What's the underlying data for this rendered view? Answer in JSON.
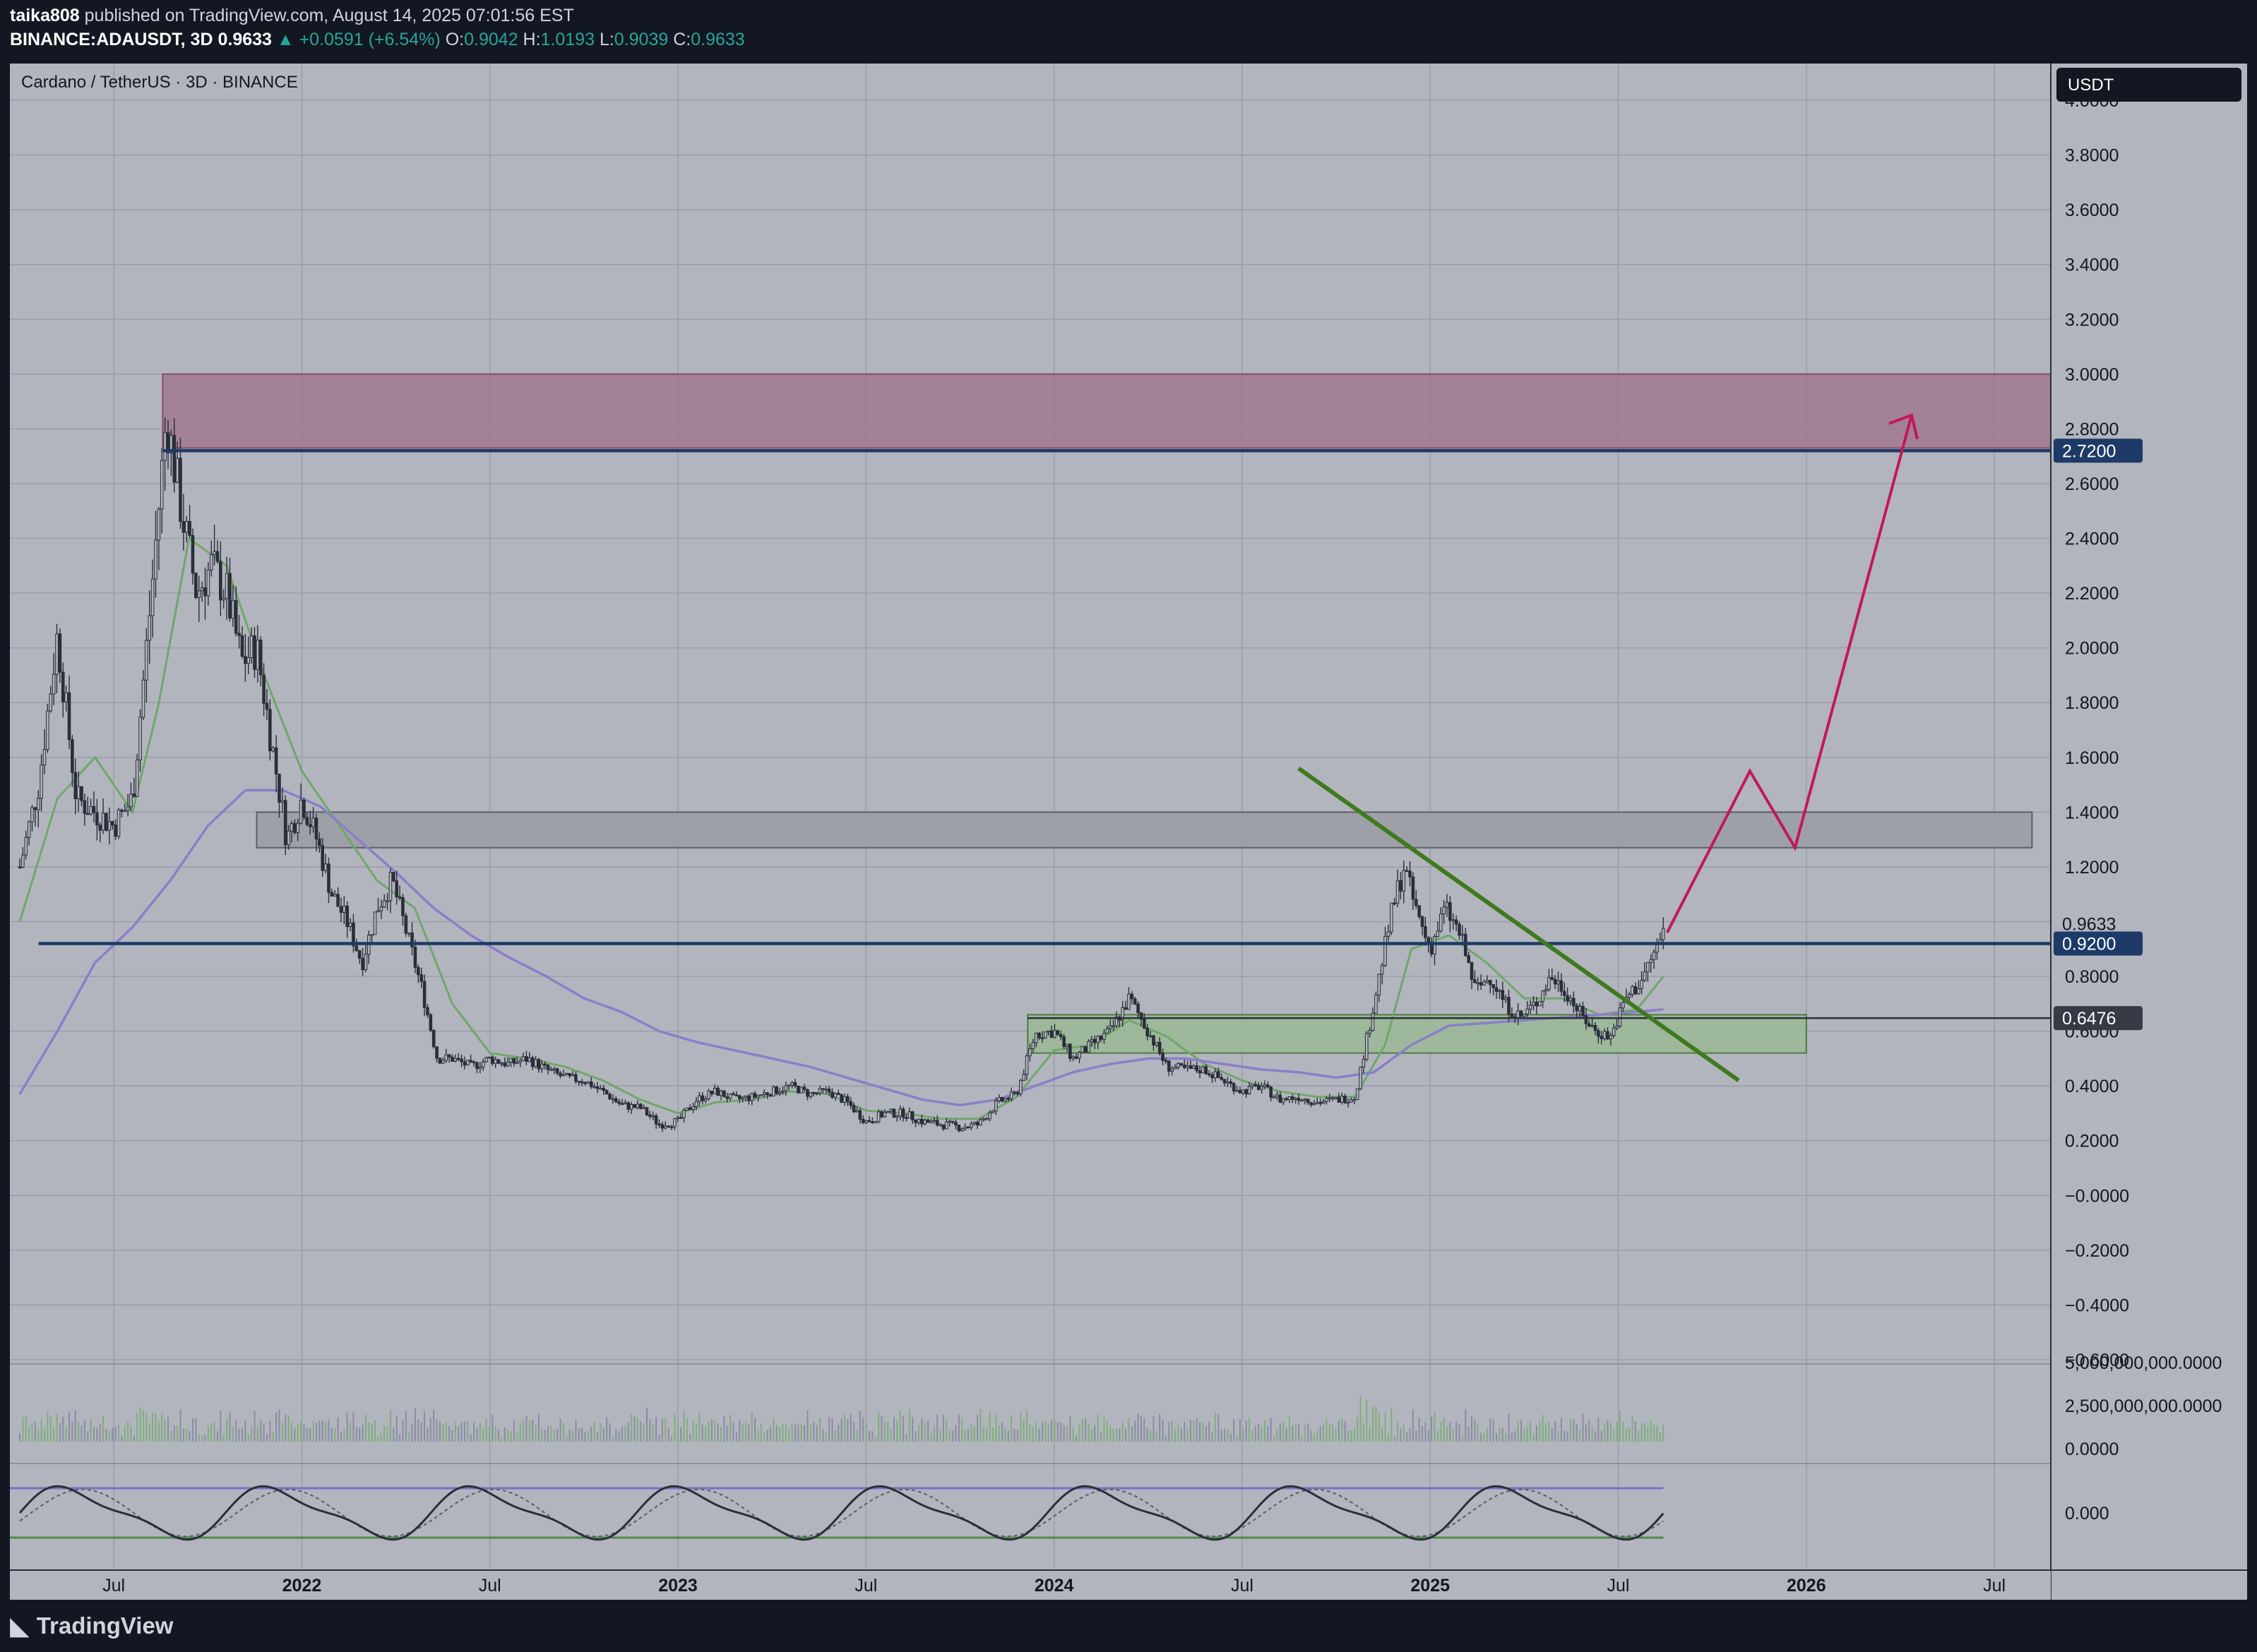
{
  "header": {
    "author": "taika808",
    "published_text": "published on TradingView.com, August 14, 2025 07:01:56 EST",
    "symbol": "BINANCE:ADAUSDT, 3D",
    "last": "0.9633",
    "change": "▲ +0.0591 (+6.54%)",
    "o_label": "O:",
    "o": "0.9042",
    "h_label": "H:",
    "h": "1.0193",
    "l_label": "L:",
    "l": "0.9039",
    "c_label": "C:",
    "c": "0.9633"
  },
  "chart_title": "Cardano / TetherUS · 3D · BINANCE",
  "currency_button": "USDT",
  "footer": {
    "logo_text": "TradingView"
  },
  "colors": {
    "background": "#b2b5be",
    "candle": "#2a2e39",
    "ema_fast": "#6fa86a",
    "ema_slow": "#8a7fc8",
    "resistance_zone": "#a0788f",
    "grey_zone": "#9a9ca4",
    "support_zone": "#9ab897",
    "trendline": "#3f7a1f",
    "projection": "#c2185b",
    "level_line": "#1e3a68"
  },
  "chart_data": {
    "type": "candlestick",
    "y_axis": {
      "min": -0.6,
      "max": 4.0,
      "ticks": [
        "4.0000",
        "3.8000",
        "3.6000",
        "3.4000",
        "3.2000",
        "3.0000",
        "2.8000",
        "2.6000",
        "2.4000",
        "2.2000",
        "2.0000",
        "1.8000",
        "1.6000",
        "1.4000",
        "1.2000",
        "1.0000",
        "0.8000",
        "0.6000",
        "0.4000",
        "0.2000",
        "−0.0000",
        "−0.2000",
        "−0.4000",
        "−0.6000"
      ]
    },
    "x_axis": {
      "start": 2021.25,
      "end": 2026.65,
      "ticks": [
        {
          "label": "Jul",
          "value": 2021.5
        },
        {
          "label": "2022",
          "value": 2022.0
        },
        {
          "label": "Jul",
          "value": 2022.5
        },
        {
          "label": "2023",
          "value": 2023.0
        },
        {
          "label": "Jul",
          "value": 2023.5
        },
        {
          "label": "2024",
          "value": 2024.0
        },
        {
          "label": "Jul",
          "value": 2024.5
        },
        {
          "label": "2025",
          "value": 2025.0
        },
        {
          "label": "Jul",
          "value": 2025.5
        },
        {
          "label": "2026",
          "value": 2026.0
        },
        {
          "label": "Jul",
          "value": 2026.5
        }
      ]
    },
    "price_path": [
      [
        2021.25,
        1.2
      ],
      [
        2021.3,
        1.5
      ],
      [
        2021.35,
        2.05
      ],
      [
        2021.4,
        1.45
      ],
      [
        2021.45,
        1.4
      ],
      [
        2021.5,
        1.35
      ],
      [
        2021.55,
        1.45
      ],
      [
        2021.6,
        2.2
      ],
      [
        2021.64,
        2.85
      ],
      [
        2021.68,
        2.5
      ],
      [
        2021.72,
        2.2
      ],
      [
        2021.76,
        2.3
      ],
      [
        2021.8,
        2.2
      ],
      [
        2021.84,
        1.95
      ],
      [
        2021.88,
        2.0
      ],
      [
        2021.92,
        1.65
      ],
      [
        2021.96,
        1.3
      ],
      [
        2022.0,
        1.45
      ],
      [
        2022.04,
        1.3
      ],
      [
        2022.08,
        1.1
      ],
      [
        2022.12,
        1.0
      ],
      [
        2022.16,
        0.85
      ],
      [
        2022.2,
        1.05
      ],
      [
        2022.24,
        1.15
      ],
      [
        2022.28,
        0.95
      ],
      [
        2022.32,
        0.75
      ],
      [
        2022.36,
        0.5
      ],
      [
        2022.4,
        0.5
      ],
      [
        2022.45,
        0.47
      ],
      [
        2022.5,
        0.5
      ],
      [
        2022.55,
        0.48
      ],
      [
        2022.6,
        0.5
      ],
      [
        2022.65,
        0.46
      ],
      [
        2022.7,
        0.43
      ],
      [
        2022.75,
        0.42
      ],
      [
        2022.8,
        0.38
      ],
      [
        2022.85,
        0.33
      ],
      [
        2022.9,
        0.32
      ],
      [
        2022.95,
        0.26
      ],
      [
        2023.0,
        0.27
      ],
      [
        2023.05,
        0.35
      ],
      [
        2023.1,
        0.38
      ],
      [
        2023.15,
        0.35
      ],
      [
        2023.2,
        0.36
      ],
      [
        2023.25,
        0.38
      ],
      [
        2023.3,
        0.4
      ],
      [
        2023.35,
        0.37
      ],
      [
        2023.4,
        0.38
      ],
      [
        2023.45,
        0.34
      ],
      [
        2023.5,
        0.27
      ],
      [
        2023.55,
        0.3
      ],
      [
        2023.6,
        0.3
      ],
      [
        2023.65,
        0.27
      ],
      [
        2023.7,
        0.26
      ],
      [
        2023.75,
        0.25
      ],
      [
        2023.8,
        0.26
      ],
      [
        2023.85,
        0.34
      ],
      [
        2023.9,
        0.37
      ],
      [
        2023.95,
        0.59
      ],
      [
        2024.0,
        0.6
      ],
      [
        2024.05,
        0.5
      ],
      [
        2024.1,
        0.55
      ],
      [
        2024.15,
        0.6
      ],
      [
        2024.2,
        0.72
      ],
      [
        2024.25,
        0.6
      ],
      [
        2024.3,
        0.47
      ],
      [
        2024.35,
        0.46
      ],
      [
        2024.4,
        0.46
      ],
      [
        2024.45,
        0.42
      ],
      [
        2024.5,
        0.38
      ],
      [
        2024.55,
        0.4
      ],
      [
        2024.6,
        0.35
      ],
      [
        2024.65,
        0.36
      ],
      [
        2024.7,
        0.34
      ],
      [
        2024.75,
        0.35
      ],
      [
        2024.8,
        0.36
      ],
      [
        2024.85,
        0.7
      ],
      [
        2024.9,
        1.05
      ],
      [
        2024.93,
        1.2
      ],
      [
        2024.96,
        1.05
      ],
      [
        2025.0,
        0.9
      ],
      [
        2025.04,
        1.05
      ],
      [
        2025.08,
        0.95
      ],
      [
        2025.12,
        0.75
      ],
      [
        2025.16,
        0.8
      ],
      [
        2025.2,
        0.7
      ],
      [
        2025.24,
        0.65
      ],
      [
        2025.28,
        0.7
      ],
      [
        2025.32,
        0.8
      ],
      [
        2025.36,
        0.75
      ],
      [
        2025.4,
        0.66
      ],
      [
        2025.44,
        0.6
      ],
      [
        2025.48,
        0.58
      ],
      [
        2025.52,
        0.72
      ],
      [
        2025.56,
        0.78
      ],
      [
        2025.6,
        0.9
      ],
      [
        2025.62,
        0.96
      ]
    ],
    "ema_fast_path": [
      [
        2021.25,
        1.0
      ],
      [
        2021.35,
        1.45
      ],
      [
        2021.45,
        1.6
      ],
      [
        2021.55,
        1.4
      ],
      [
        2021.62,
        1.8
      ],
      [
        2021.7,
        2.4
      ],
      [
        2021.8,
        2.3
      ],
      [
        2021.9,
        1.9
      ],
      [
        2022.0,
        1.55
      ],
      [
        2022.1,
        1.35
      ],
      [
        2022.2,
        1.15
      ],
      [
        2022.3,
        1.05
      ],
      [
        2022.4,
        0.7
      ],
      [
        2022.5,
        0.52
      ],
      [
        2022.6,
        0.5
      ],
      [
        2022.7,
        0.47
      ],
      [
        2022.8,
        0.42
      ],
      [
        2022.9,
        0.35
      ],
      [
        2023.0,
        0.3
      ],
      [
        2023.1,
        0.34
      ],
      [
        2023.2,
        0.35
      ],
      [
        2023.3,
        0.38
      ],
      [
        2023.4,
        0.37
      ],
      [
        2023.5,
        0.31
      ],
      [
        2023.6,
        0.3
      ],
      [
        2023.7,
        0.28
      ],
      [
        2023.8,
        0.28
      ],
      [
        2023.9,
        0.36
      ],
      [
        2024.0,
        0.53
      ],
      [
        2024.1,
        0.55
      ],
      [
        2024.2,
        0.64
      ],
      [
        2024.3,
        0.58
      ],
      [
        2024.4,
        0.48
      ],
      [
        2024.5,
        0.42
      ],
      [
        2024.6,
        0.38
      ],
      [
        2024.7,
        0.36
      ],
      [
        2024.8,
        0.36
      ],
      [
        2024.88,
        0.55
      ],
      [
        2024.95,
        0.9
      ],
      [
        2025.05,
        0.95
      ],
      [
        2025.15,
        0.85
      ],
      [
        2025.25,
        0.72
      ],
      [
        2025.35,
        0.72
      ],
      [
        2025.45,
        0.66
      ],
      [
        2025.55,
        0.68
      ],
      [
        2025.62,
        0.8
      ]
    ],
    "ema_slow_path": [
      [
        2021.25,
        0.37
      ],
      [
        2021.35,
        0.6
      ],
      [
        2021.45,
        0.85
      ],
      [
        2021.55,
        0.98
      ],
      [
        2021.65,
        1.15
      ],
      [
        2021.75,
        1.35
      ],
      [
        2021.85,
        1.48
      ],
      [
        2021.95,
        1.48
      ],
      [
        2022.05,
        1.42
      ],
      [
        2022.15,
        1.3
      ],
      [
        2022.25,
        1.18
      ],
      [
        2022.35,
        1.05
      ],
      [
        2022.45,
        0.95
      ],
      [
        2022.55,
        0.87
      ],
      [
        2022.65,
        0.8
      ],
      [
        2022.75,
        0.72
      ],
      [
        2022.85,
        0.67
      ],
      [
        2022.95,
        0.6
      ],
      [
        2023.05,
        0.56
      ],
      [
        2023.15,
        0.53
      ],
      [
        2023.25,
        0.5
      ],
      [
        2023.35,
        0.47
      ],
      [
        2023.45,
        0.43
      ],
      [
        2023.55,
        0.39
      ],
      [
        2023.65,
        0.35
      ],
      [
        2023.75,
        0.33
      ],
      [
        2023.85,
        0.35
      ],
      [
        2023.95,
        0.4
      ],
      [
        2024.05,
        0.45
      ],
      [
        2024.15,
        0.48
      ],
      [
        2024.25,
        0.5
      ],
      [
        2024.35,
        0.5
      ],
      [
        2024.45,
        0.48
      ],
      [
        2024.55,
        0.46
      ],
      [
        2024.65,
        0.45
      ],
      [
        2024.75,
        0.43
      ],
      [
        2024.85,
        0.45
      ],
      [
        2024.95,
        0.55
      ],
      [
        2025.05,
        0.62
      ],
      [
        2025.15,
        0.63
      ],
      [
        2025.25,
        0.64
      ],
      [
        2025.35,
        0.65
      ],
      [
        2025.45,
        0.66
      ],
      [
        2025.55,
        0.67
      ],
      [
        2025.62,
        0.68
      ]
    ],
    "zones": [
      {
        "name": "resistance-zone",
        "x1": 2021.63,
        "x2": 2026.7,
        "y1": 2.73,
        "y2": 3.0
      },
      {
        "name": "grey-zone",
        "x1": 2021.88,
        "x2": 2026.6,
        "y1": 1.27,
        "y2": 1.4
      },
      {
        "name": "support-zone",
        "x1": 2023.93,
        "x2": 2026.0,
        "y1": 0.52,
        "y2": 0.66
      }
    ],
    "levels": [
      {
        "value": 2.72,
        "label": "2.7200",
        "x1": 2021.63
      },
      {
        "value": 0.92,
        "label": "0.9200",
        "x1": 2021.3
      },
      {
        "value": 0.6476,
        "label": "0.6476",
        "x1": 2023.93
      }
    ],
    "last_price": {
      "value": 0.9633,
      "label": "0.9633"
    },
    "trendline": [
      [
        2024.65,
        1.56
      ],
      [
        2025.82,
        0.42
      ]
    ],
    "projection": [
      [
        2025.63,
        0.96
      ],
      [
        2025.85,
        1.55
      ],
      [
        2025.97,
        1.27
      ],
      [
        2026.28,
        2.85
      ]
    ],
    "volume_axis": [
      "5,000,000,000.0000",
      "2,500,000,000.0000",
      "0.0000"
    ],
    "oscillator_axis": [
      "0.000"
    ]
  }
}
